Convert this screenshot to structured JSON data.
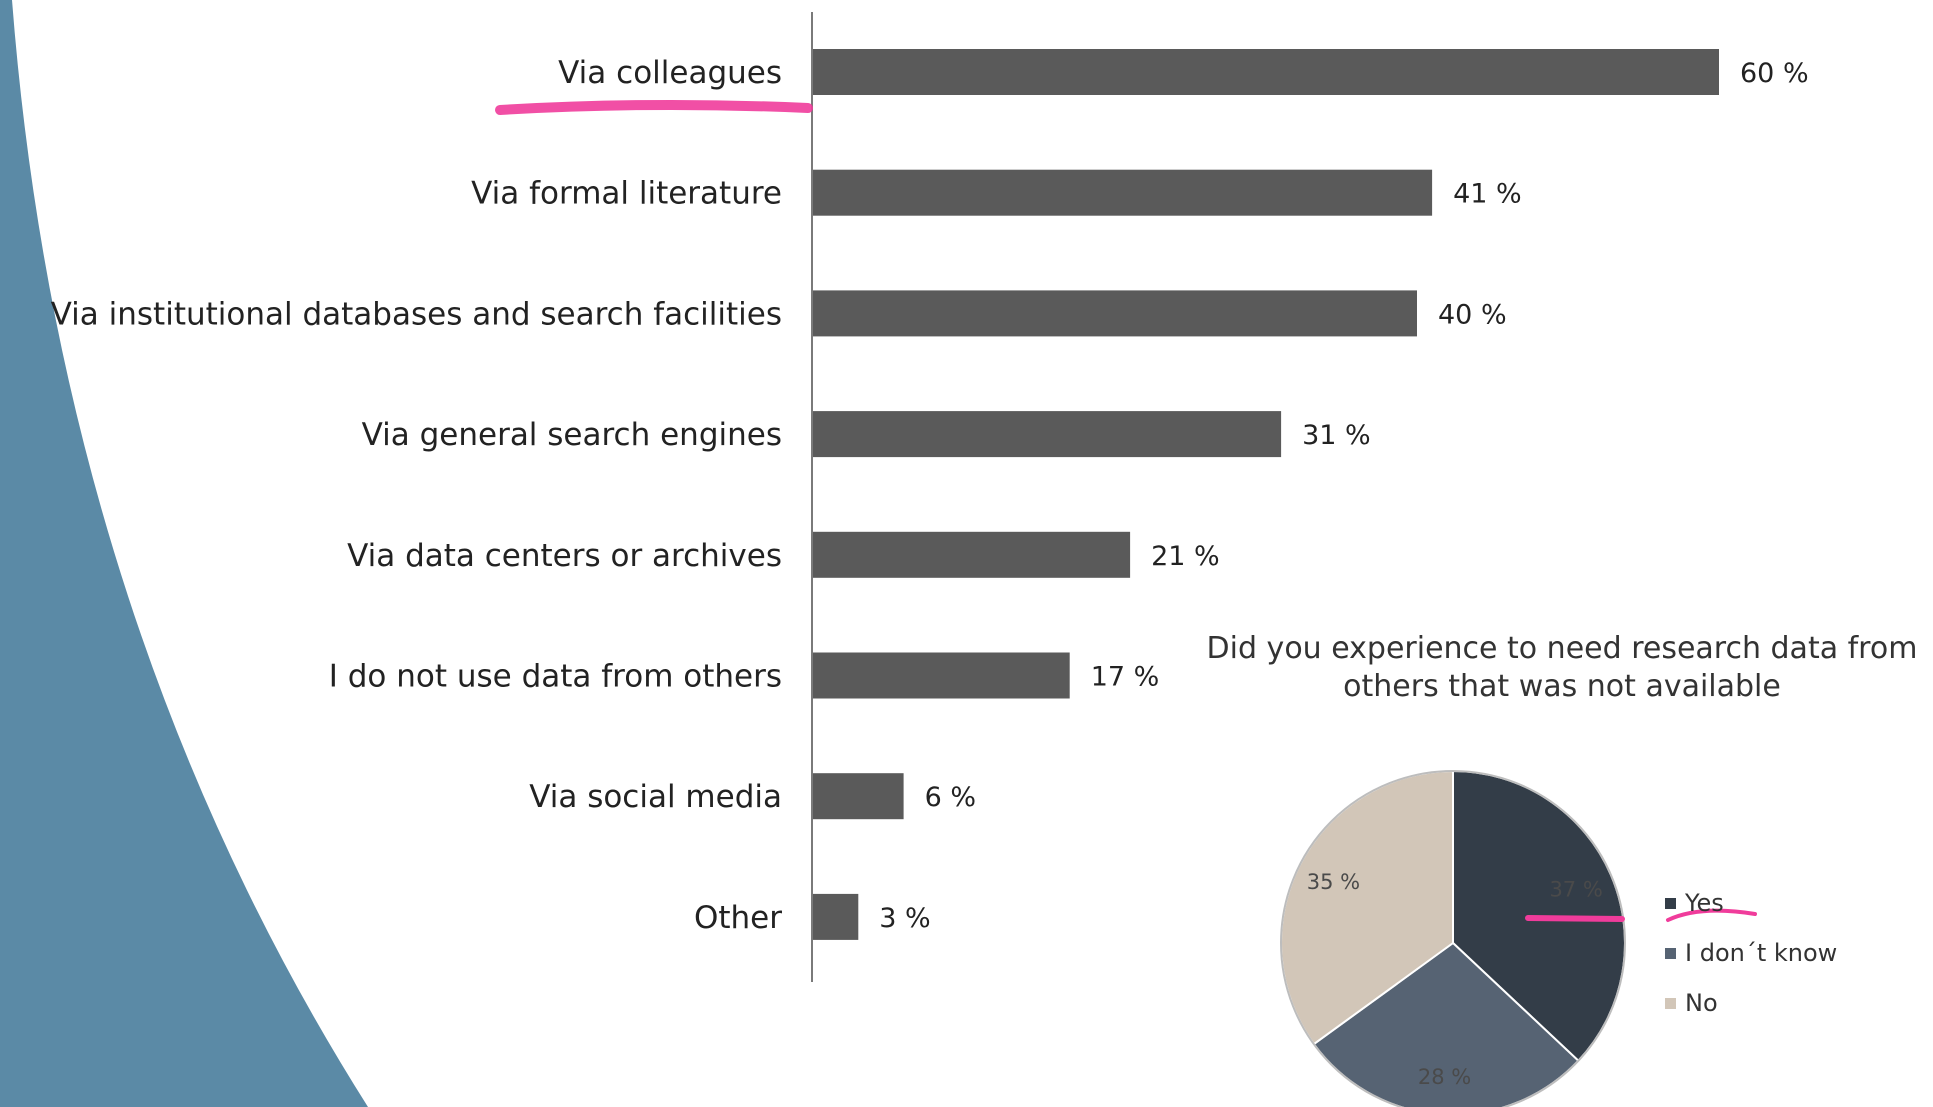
{
  "colors": {
    "bar": "#5a5a5a",
    "axis": "#7a7a7a",
    "decor": "#5b8aa6",
    "highlight": "#f03c9b"
  },
  "chart_data": [
    {
      "type": "bar",
      "orientation": "horizontal",
      "title": "",
      "xlabel": "",
      "ylabel": "",
      "xlim": [
        0,
        100
      ],
      "categories": [
        "Via colleagues",
        "Via formal literature",
        "Via institutional databases and search facilities",
        "Via general search engines",
        "Via data centers or archives",
        "I do not use data from others",
        "Via social media",
        "Other"
      ],
      "values": [
        60,
        41,
        40,
        31,
        21,
        17,
        6,
        3
      ],
      "value_labels": [
        "60 %",
        "41 %",
        "40 %",
        "31 %",
        "21 %",
        "17 %",
        "6 %",
        "3 %"
      ],
      "grid": false
    },
    {
      "type": "pie",
      "title_lines": [
        "Did you experience to need research data from",
        "others that was not available"
      ],
      "slices": [
        {
          "name": "Yes",
          "value": 37,
          "label": "37 %",
          "color": "#333d48"
        },
        {
          "name": "I don´t know",
          "value": 28,
          "label": "28 %",
          "color": "#566373"
        },
        {
          "name": "No",
          "value": 35,
          "label": "35 %",
          "color": "#d2c6b8"
        }
      ],
      "legend_position": "right"
    }
  ]
}
